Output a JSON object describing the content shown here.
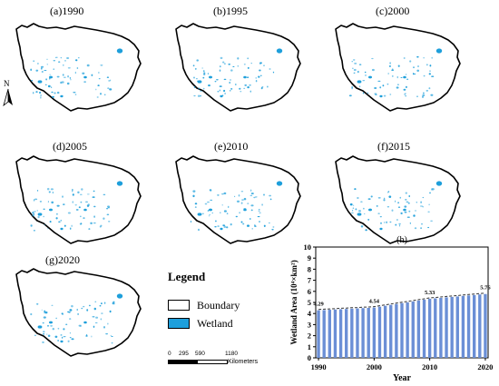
{
  "maps": [
    {
      "label": "(a)1990"
    },
    {
      "label": "(b)1995"
    },
    {
      "label": "(c)2000"
    },
    {
      "label": "(d)2005"
    },
    {
      "label": "(e)2010"
    },
    {
      "label": "(f)2015"
    },
    {
      "label": "(g)2020"
    }
  ],
  "north_label": "N",
  "legend": {
    "title": "Legend",
    "items": [
      {
        "label": "Boundary",
        "color": "#ffffff"
      },
      {
        "label": "Wetland",
        "color": "#1e9fdb"
      }
    ]
  },
  "scalebar": {
    "ticks": [
      "0",
      "295",
      "590",
      "1180"
    ],
    "unit": "Kilometers"
  },
  "colors": {
    "wetland": "#1e9fdb",
    "boundary": "#000000",
    "bar": "#6b8fd6"
  },
  "chart_data": {
    "type": "bar",
    "title": "(h)",
    "xlabel": "Year",
    "ylabel": "Wetland Area (10⁴×km²)",
    "x": [
      1990,
      1991,
      1992,
      1993,
      1994,
      1995,
      1996,
      1997,
      1998,
      1999,
      2000,
      2001,
      2002,
      2003,
      2004,
      2005,
      2006,
      2007,
      2008,
      2009,
      2010,
      2011,
      2012,
      2013,
      2014,
      2015,
      2016,
      2017,
      2018,
      2019,
      2020
    ],
    "values": [
      4.29,
      4.31,
      4.34,
      4.36,
      4.39,
      4.41,
      4.44,
      4.46,
      4.49,
      4.51,
      4.54,
      4.62,
      4.7,
      4.78,
      4.86,
      4.94,
      5.01,
      5.09,
      5.17,
      5.25,
      5.33,
      5.37,
      5.41,
      5.46,
      5.5,
      5.54,
      5.59,
      5.63,
      5.67,
      5.72,
      5.76
    ],
    "data_labels": [
      {
        "x": 1990,
        "text": "4.29"
      },
      {
        "x": 2000,
        "text": "4.54"
      },
      {
        "x": 2010,
        "text": "5.33"
      },
      {
        "x": 2020,
        "text": "5.76"
      }
    ],
    "x_ticks": [
      "1990",
      "2000",
      "2010",
      "2020"
    ],
    "y_ticks": [
      "0",
      "1",
      "2",
      "3",
      "4",
      "5",
      "6",
      "7",
      "8",
      "9",
      "10"
    ],
    "ylim": [
      0,
      10
    ],
    "xlim": [
      1990,
      2020
    ],
    "trend_line": "dashed",
    "grid": false
  }
}
